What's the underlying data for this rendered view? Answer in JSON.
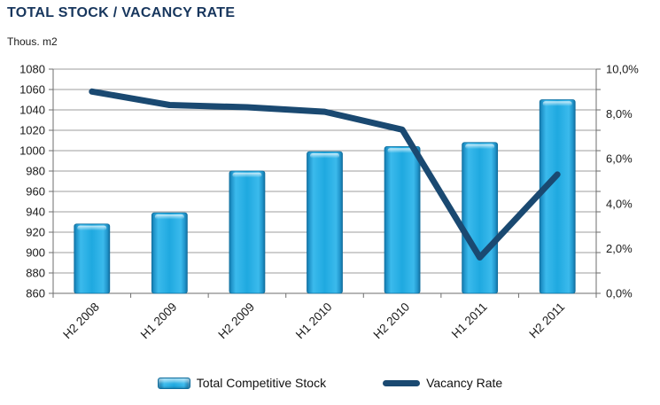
{
  "header": {
    "title": "TOTAL STOCK / VACANCY RATE",
    "units_label": "Thous. m2"
  },
  "chart_data": {
    "type": "bar",
    "subtype": "combo-bar-line-dual-axis",
    "title": "TOTAL STOCK / VACANCY RATE",
    "units_label": "Thous. m2",
    "categories": [
      "H2 2008",
      "H1 2009",
      "H2 2009",
      "H1 2010",
      "H2 2010",
      "H1 2011",
      "H2 2011"
    ],
    "series": [
      {
        "name": "Total Competitive Stock",
        "chart_type": "bar",
        "axis": "left",
        "values": [
          928,
          939,
          980,
          999,
          1004,
          1008,
          1050
        ],
        "color": "#1FA9E0"
      },
      {
        "name": "Vacancy Rate",
        "chart_type": "line",
        "axis": "right",
        "values": [
          9.0,
          8.4,
          8.3,
          8.1,
          7.3,
          1.6,
          5.3
        ],
        "unit": "%",
        "color": "#1A4971"
      }
    ],
    "left_axis": {
      "min": 860,
      "max": 1080,
      "step": 20,
      "ticks": [
        860,
        880,
        900,
        920,
        940,
        960,
        980,
        1000,
        1020,
        1040,
        1060,
        1080
      ]
    },
    "right_axis": {
      "min": 0,
      "max": 10,
      "step": 2,
      "ticks": [
        "0,0%",
        "2,0%",
        "4,0%",
        "6,0%",
        "8,0%",
        "10,0%"
      ]
    },
    "grid": true,
    "legend_position": "bottom",
    "colors": {
      "title": "#17365D",
      "bar_fill": "#1FA9E0",
      "bar_edge": "#0F6E9E",
      "line": "#1A4971",
      "gridline": "#9C9C9C",
      "axis": "#6E6E6E",
      "text": "#1A1A1A"
    }
  },
  "legend": {
    "items": [
      {
        "label": "Total Competitive Stock",
        "swatch": "bar"
      },
      {
        "label": "Vacancy Rate",
        "swatch": "line"
      }
    ]
  }
}
